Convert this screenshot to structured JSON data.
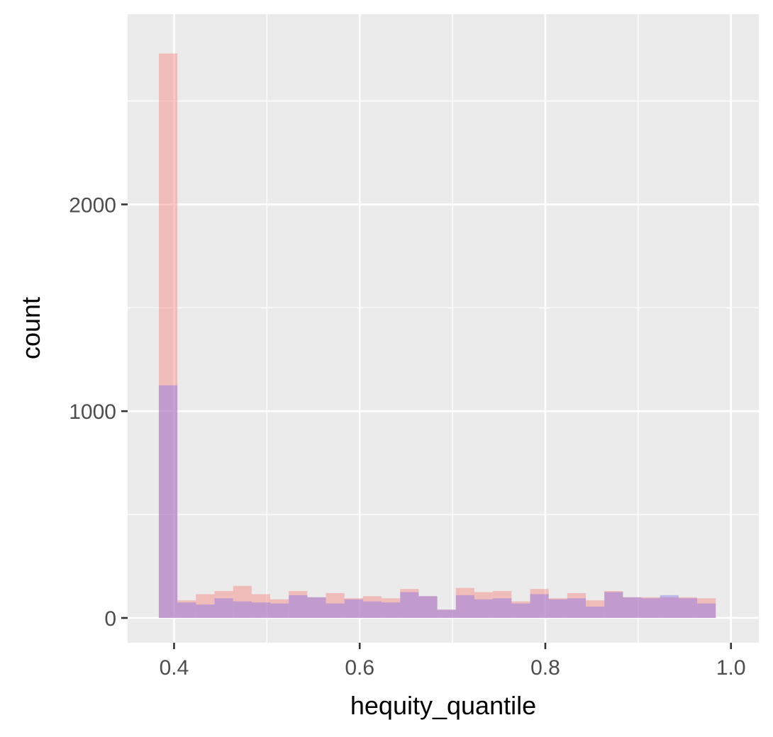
{
  "chart_data": {
    "type": "bar",
    "xlabel": "hequity_quantile",
    "ylabel": "count",
    "xlim": [
      0.35,
      1.03
    ],
    "ylim": [
      -120,
      2920
    ],
    "x_major_ticks": [
      0.4,
      0.6,
      0.8,
      1.0
    ],
    "x_tick_labels": [
      "0.4",
      "0.6",
      "0.8",
      "1.0"
    ],
    "x_minor_ticks": [
      0.5,
      0.7,
      0.9
    ],
    "y_major_ticks": [
      0,
      1000,
      2000
    ],
    "y_tick_labels": [
      "0",
      "1000",
      "2000"
    ],
    "y_minor_ticks": [
      500,
      1500,
      2500
    ],
    "grid": true,
    "bin_edges": [
      0.3836,
      0.4036,
      0.4236,
      0.4436,
      0.4636,
      0.4836,
      0.5036,
      0.5236,
      0.5436,
      0.5636,
      0.5836,
      0.6036,
      0.6236,
      0.6436,
      0.6636,
      0.6836,
      0.7036,
      0.7236,
      0.7436,
      0.7636,
      0.7836,
      0.8036,
      0.8236,
      0.8436,
      0.8636,
      0.8836,
      0.9036,
      0.9236,
      0.9436,
      0.9636,
      0.9836,
      1.0036
    ],
    "series": [
      {
        "color": "#F8766D",
        "opacity": 0.4,
        "values": [
          2730,
          85,
          115,
          130,
          155,
          115,
          90,
          130,
          100,
          120,
          95,
          105,
          95,
          140,
          105,
          40,
          145,
          125,
          130,
          80,
          140,
          95,
          120,
          85,
          130,
          100,
          100,
          100,
          100,
          95
        ]
      },
      {
        "color": "#7B68EE",
        "opacity": 0.4,
        "values": [
          1125,
          75,
          65,
          95,
          80,
          75,
          70,
          110,
          100,
          70,
          90,
          80,
          75,
          125,
          105,
          40,
          110,
          90,
          95,
          70,
          115,
          90,
          95,
          55,
          125,
          100,
          95,
          110,
          95,
          70
        ]
      }
    ]
  }
}
